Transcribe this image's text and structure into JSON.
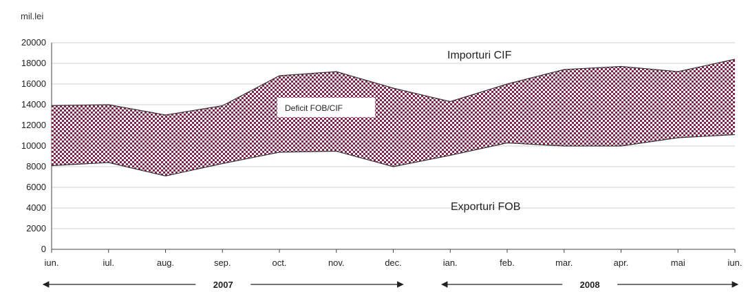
{
  "chart_data": {
    "type": "area",
    "unit_label": "mil.lei",
    "categories": [
      "iun.",
      "iul.",
      "aug.",
      "sep.",
      "oct.",
      "nov.",
      "dec.",
      "ian.",
      "feb.",
      "mar.",
      "apr.",
      "mai",
      "iun."
    ],
    "series": [
      {
        "name": "Importuri CIF",
        "values": [
          13900,
          14000,
          13000,
          13900,
          16800,
          17200,
          15600,
          14300,
          16000,
          17400,
          17700,
          17200,
          18400
        ]
      },
      {
        "name": "Exporturi FOB",
        "values": [
          8100,
          8400,
          7100,
          8300,
          9400,
          9500,
          8000,
          9100,
          10300,
          10000,
          10000,
          10800,
          11100
        ]
      }
    ],
    "area_label": "Deficit FOB/CIF",
    "ylim": [
      0,
      20000
    ],
    "yticks": [
      0,
      2000,
      4000,
      6000,
      8000,
      10000,
      12000,
      14000,
      16000,
      18000,
      20000
    ],
    "grid": true,
    "fill_color": "#8b1f4a",
    "line_color": "#333333",
    "periods": [
      {
        "label": "2007",
        "from_index": 0,
        "to_index": 6
      },
      {
        "label": "2008",
        "from_index": 7,
        "to_index": 12
      }
    ]
  }
}
